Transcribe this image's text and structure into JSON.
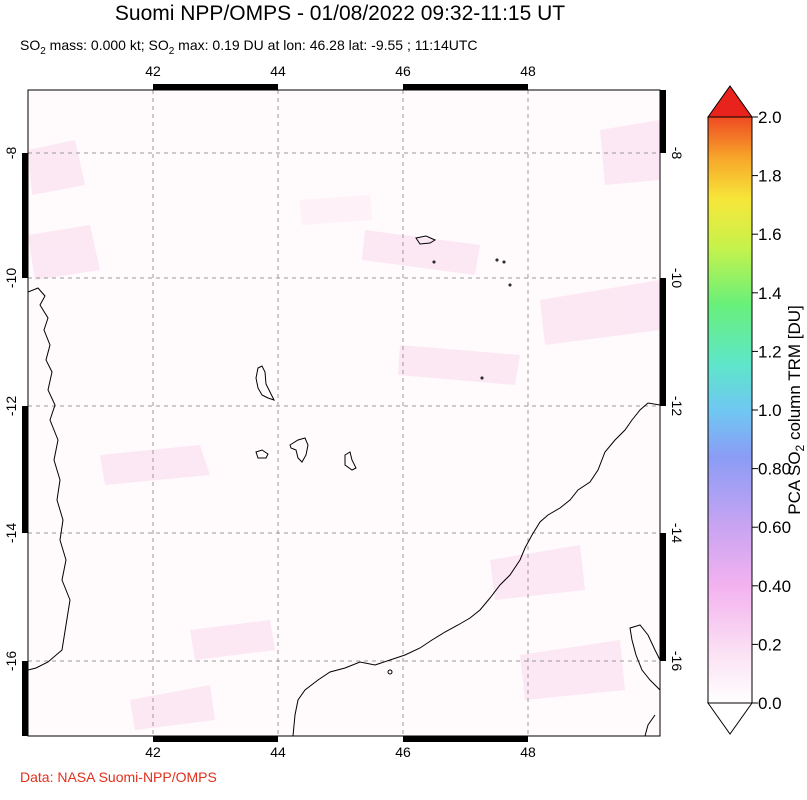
{
  "title": "Suomi NPP/OMPS - 01/08/2022 09:32-11:15 UT",
  "subtitle": {
    "prefix": "SO",
    "sub1": "2",
    "mid": " mass: 0.000 kt; SO",
    "sub2": "2",
    "rest": " max: 0.19 DU at lon: 46.28 lat: -9.55 ; 11:14UTC"
  },
  "credit": "Data: NASA Suomi-NPP/OMPS",
  "map": {
    "lon_ticks": [
      "42",
      "44",
      "46",
      "48"
    ],
    "lat_ticks": [
      "-8",
      "-10",
      "-12",
      "-14",
      "-16"
    ]
  },
  "colorbar": {
    "label_prefix": "PCA SO",
    "label_sub": "2",
    "label_suffix": " column TRM [DU]",
    "ticks": [
      "2.0",
      "1.8",
      "1.6",
      "1.4",
      "1.2",
      "1.0",
      "0.80",
      "0.60",
      "0.40",
      "0.2",
      "0.0"
    ],
    "colors": [
      "#ffffff",
      "#fbd9f2",
      "#f2a8ef",
      "#c9a4f2",
      "#8a9cf5",
      "#6fc8f2",
      "#5ee6c8",
      "#69f07a",
      "#c9f24a",
      "#f7e63a",
      "#f7a62a",
      "#ef5a25",
      "#e8231d"
    ]
  }
}
